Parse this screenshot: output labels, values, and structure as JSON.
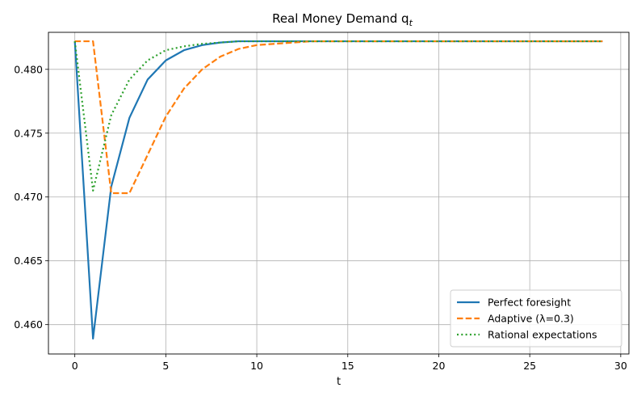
{
  "chart_data": {
    "type": "line",
    "title": "Real Money Demand q",
    "title_subscript": "t",
    "xlabel": "t",
    "ylabel": "",
    "xlim": [
      -1.45,
      30.45
    ],
    "ylim": [
      0.4577,
      0.4829
    ],
    "xticks": [
      0,
      5,
      10,
      15,
      20,
      25,
      30
    ],
    "yticks": [
      0.46,
      0.465,
      0.47,
      0.475,
      0.48
    ],
    "yticks_labels": [
      "0.460",
      "0.465",
      "0.470",
      "0.475",
      "0.480"
    ],
    "grid": true,
    "legend_position": "bottom-right",
    "x": [
      0,
      1,
      2,
      3,
      4,
      5,
      6,
      7,
      8,
      9,
      10,
      11,
      12,
      13,
      14,
      15,
      16,
      17,
      18,
      19,
      20,
      21,
      22,
      23,
      24,
      25,
      26,
      27,
      28,
      29
    ],
    "series": [
      {
        "name": "Perfect foresight",
        "color": "#1f77b4",
        "style": "solid",
        "values": [
          0.4822,
          0.4589,
          0.4708,
          0.4762,
          0.4792,
          0.4807,
          0.4815,
          0.4819,
          0.4821,
          0.4822,
          0.4822,
          0.4822,
          0.4822,
          0.4822,
          0.4822,
          0.4822,
          0.4822,
          0.4822,
          0.4822,
          0.4822,
          0.4822,
          0.4822,
          0.4822,
          0.4822,
          0.4822,
          0.4822,
          0.4822,
          0.4822,
          0.4822,
          0.4822
        ]
      },
      {
        "name": "Adaptive (λ=0.3)",
        "color": "#ff7f0e",
        "style": "dashed",
        "values": [
          0.4822,
          0.4822,
          0.4703,
          0.4703,
          0.4733,
          0.4763,
          0.4785,
          0.48,
          0.481,
          0.4816,
          0.4819,
          0.482,
          0.4821,
          0.4822,
          0.4822,
          0.4822,
          0.4822,
          0.4822,
          0.4822,
          0.4822,
          0.4822,
          0.4822,
          0.4822,
          0.4822,
          0.4822,
          0.4822,
          0.4822,
          0.4822,
          0.4822,
          0.4822
        ]
      },
      {
        "name": "Rational expectations",
        "color": "#2ca02c",
        "style": "dotted",
        "values": [
          0.4822,
          0.4705,
          0.4764,
          0.4792,
          0.4807,
          0.4815,
          0.4818,
          0.482,
          0.4821,
          0.4822,
          0.4822,
          0.4822,
          0.4822,
          0.4822,
          0.4822,
          0.4822,
          0.4822,
          0.4822,
          0.4822,
          0.4822,
          0.4822,
          0.4822,
          0.4822,
          0.4822,
          0.4822,
          0.4822,
          0.4822,
          0.4822,
          0.4822,
          0.4822
        ]
      }
    ]
  }
}
